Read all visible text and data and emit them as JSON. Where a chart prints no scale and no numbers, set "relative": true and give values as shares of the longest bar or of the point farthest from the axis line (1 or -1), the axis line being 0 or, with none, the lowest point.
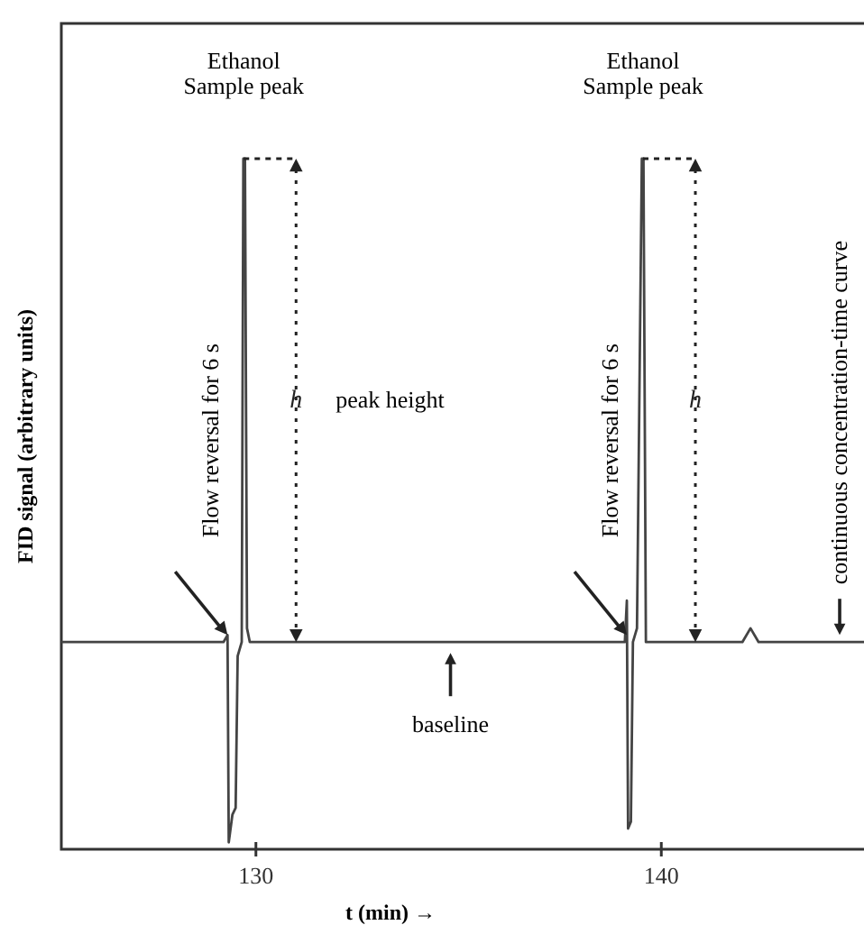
{
  "chart_data": {
    "type": "line",
    "relative": true,
    "xlabel": "t (min) →",
    "ylabel": "FID signal (arbitrary units)",
    "xlim": [
      125.2,
      145
    ],
    "xticks": [
      130,
      140
    ],
    "grid": false,
    "marker": "none",
    "line_style": "solid",
    "series": [
      {
        "color": "#444444",
        "x": [
          125.2,
          129.2,
          129.3,
          129.33,
          129.42,
          129.5,
          129.55,
          129.65,
          129.69,
          129.73,
          129.78,
          129.85,
          139.1,
          139.15,
          139.18,
          139.25,
          139.3,
          139.4,
          139.52,
          139.56,
          139.62,
          142.0,
          142.2,
          142.4,
          145.0
        ],
        "values": [
          0.3,
          0.3,
          0.31,
          0.01,
          0.05,
          0.06,
          0.28,
          0.3,
          1,
          1,
          0.32,
          0.3,
          0.3,
          0.36,
          0.03,
          0.04,
          0.3,
          0.32,
          1,
          1,
          0.3,
          0.3,
          0.32,
          0.3,
          0.3
        ]
      }
    ],
    "annotations": [
      {
        "text": "Ethanol\nSample peak",
        "x": 129.7,
        "y": 1
      },
      {
        "text": "Ethanol\nSample peak",
        "x": 139.55,
        "y": 1
      },
      "Flow reversal for 6 s",
      "Flow reversal for 6 s",
      "h",
      "h",
      "peak height",
      {
        "text": "baseline",
        "x": 134.8,
        "y": 0.3
      },
      {
        "text": "continuous concentration-time curve",
        "x": 144.4,
        "y": 0.3
      }
    ]
  }
}
